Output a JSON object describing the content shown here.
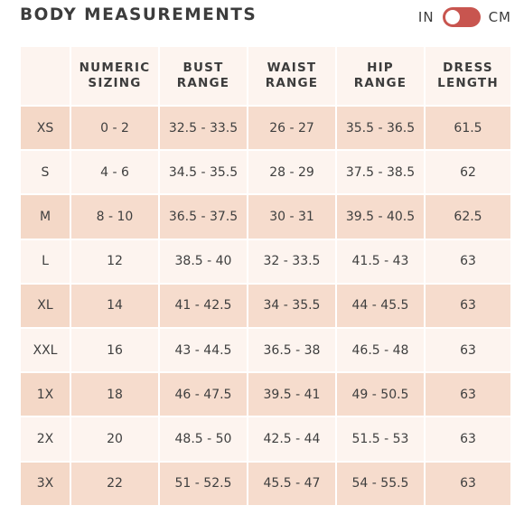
{
  "title": "BODY MEASUREMENTS",
  "unit_toggle": {
    "left_label": "IN",
    "right_label": "CM",
    "accent_color": "#c8554f"
  },
  "headers": {
    "numeric_line1": "NUMERIC",
    "numeric_line2": "SIZING",
    "bust_line1": "BUST",
    "bust_line2": "RANGE",
    "waist_line1": "WAIST",
    "waist_line2": "RANGE",
    "hip_line1": "HIP",
    "hip_line2": "RANGE",
    "dress_line1": "DRESS",
    "dress_line2": "LENGTH"
  },
  "rows": [
    {
      "size": "XS",
      "numeric": "0 - 2",
      "bust": "32.5 - 33.5",
      "waist": "26 - 27",
      "hip": "35.5 - 36.5",
      "length": "61.5"
    },
    {
      "size": "S",
      "numeric": "4 - 6",
      "bust": "34.5 - 35.5",
      "waist": "28 - 29",
      "hip": "37.5 - 38.5",
      "length": "62"
    },
    {
      "size": "M",
      "numeric": "8 - 10",
      "bust": "36.5 - 37.5",
      "waist": "30 - 31",
      "hip": "39.5 - 40.5",
      "length": "62.5"
    },
    {
      "size": "L",
      "numeric": "12",
      "bust": "38.5 - 40",
      "waist": "32 - 33.5",
      "hip": "41.5 - 43",
      "length": "63"
    },
    {
      "size": "XL",
      "numeric": "14",
      "bust": "41 - 42.5",
      "waist": "34 - 35.5",
      "hip": "44 - 45.5",
      "length": "63"
    },
    {
      "size": "XXL",
      "numeric": "16",
      "bust": "43 - 44.5",
      "waist": "36.5 - 38",
      "hip": "46.5 - 48",
      "length": "63"
    },
    {
      "size": "1X",
      "numeric": "18",
      "bust": "46 - 47.5",
      "waist": "39.5 - 41",
      "hip": "49 - 50.5",
      "length": "63"
    },
    {
      "size": "2X",
      "numeric": "20",
      "bust": "48.5 - 50",
      "waist": "42.5 - 44",
      "hip": "51.5 - 53",
      "length": "63"
    },
    {
      "size": "3X",
      "numeric": "22",
      "bust": "51 - 52.5",
      "waist": "45.5 - 47",
      "hip": "54 - 55.5",
      "length": "63"
    }
  ]
}
